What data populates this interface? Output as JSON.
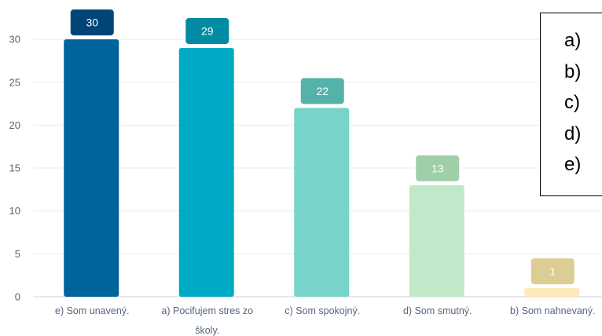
{
  "chart_data": {
    "type": "bar",
    "categories": [
      "e) Som unavený.",
      "a) Pociťujem stres zo školy.",
      "c) Som spokojný.",
      "d) Som smutný.",
      "b) Som nahnevaný."
    ],
    "category_lines": [
      [
        "e) Som unavený."
      ],
      [
        "a) Pocifujem stres zo",
        "školy."
      ],
      [
        "c) Som spokojný."
      ],
      [
        "d) Som smutný."
      ],
      [
        "b) Som nahnevaný."
      ]
    ],
    "values": [
      30,
      29,
      22,
      13,
      1
    ],
    "bar_colors": [
      "#00649c",
      "#00acc5",
      "#78d4c9",
      "#bfe9c9",
      "#fdeab8"
    ],
    "label_colors": [
      "#004575",
      "#008ba3",
      "#54b3a8",
      "#9fcfa8",
      "#dccd94"
    ],
    "yticks": [
      0,
      5,
      10,
      15,
      20,
      25,
      30
    ],
    "ylim": [
      0,
      32.5
    ],
    "grid": true,
    "title": "",
    "xlabel": "",
    "ylabel": ""
  },
  "legend": {
    "items": [
      "a)",
      "b)",
      "c)",
      "d)",
      "e)"
    ]
  }
}
